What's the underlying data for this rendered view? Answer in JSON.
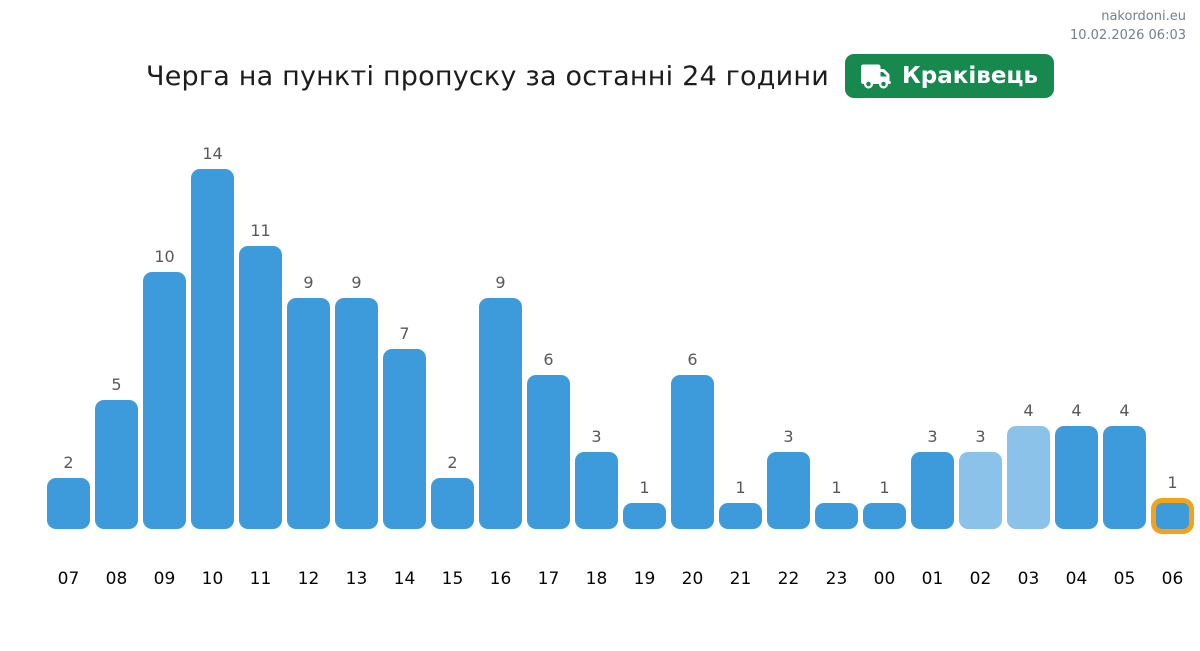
{
  "header": {
    "site": "nakordoni.eu",
    "timestamp": "10.02.2026 06:03"
  },
  "title": {
    "text": "Черга на пункті пропуску за останні 24 години",
    "badge": "Краківець"
  },
  "chart_data": {
    "type": "bar",
    "title": "Черга на пункті пропуску за останні 24 години",
    "categories": [
      "07",
      "08",
      "09",
      "10",
      "11",
      "12",
      "13",
      "14",
      "15",
      "16",
      "17",
      "18",
      "19",
      "20",
      "21",
      "22",
      "23",
      "00",
      "01",
      "02",
      "03",
      "04",
      "05",
      "06"
    ],
    "values": [
      2,
      5,
      10,
      14,
      11,
      9,
      9,
      7,
      2,
      9,
      6,
      3,
      1,
      6,
      1,
      3,
      1,
      1,
      3,
      3,
      4,
      4,
      4,
      1
    ],
    "bar_styles": [
      "normal",
      "normal",
      "normal",
      "normal",
      "normal",
      "normal",
      "normal",
      "normal",
      "normal",
      "normal",
      "normal",
      "normal",
      "normal",
      "normal",
      "normal",
      "normal",
      "normal",
      "normal",
      "normal",
      "light",
      "light",
      "normal",
      "normal",
      "highlight"
    ],
    "value_labels": true,
    "xlabel": "",
    "ylabel": "",
    "ylim": [
      0,
      15
    ],
    "grid": false,
    "legend": false,
    "colors": {
      "bar": "#3d9bdb",
      "bar_light": "#8ac2ea",
      "highlight_border": "#f5a21b",
      "badge_green": "#17894e",
      "value_label": "#595959",
      "axis_label": "#050505",
      "header_text": "#74808a"
    }
  }
}
